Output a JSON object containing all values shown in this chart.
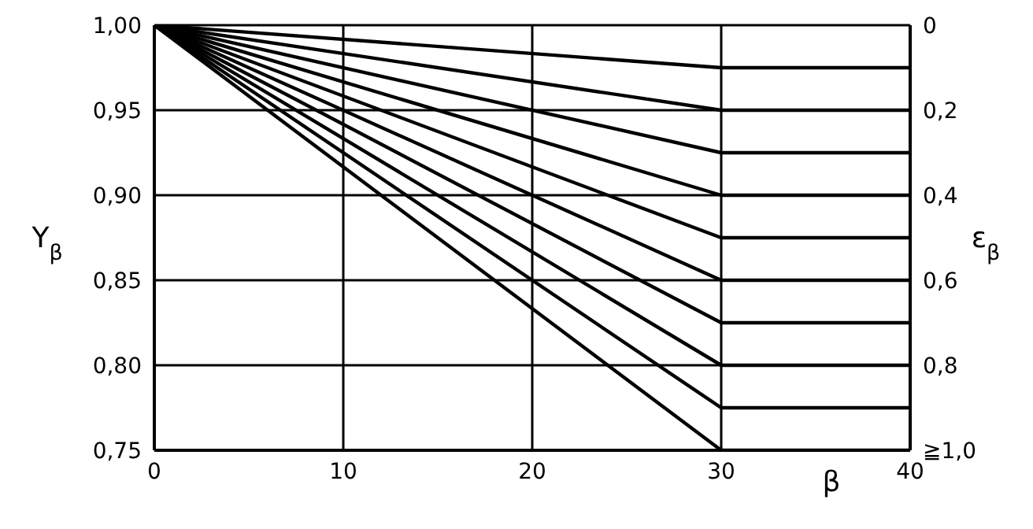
{
  "chart_data": {
    "type": "line",
    "xlabel": "β",
    "ylabel": "Y$_{β}$",
    "y2label": "ε$_{β}$",
    "xlim": [
      0,
      40
    ],
    "xticks": [
      0,
      10,
      20,
      30,
      40
    ],
    "ylim": [
      0.75,
      1.0
    ],
    "yticks": [
      {
        "value": 0.75,
        "label": "0,75"
      },
      {
        "value": 0.8,
        "label": "0,80"
      },
      {
        "value": 0.85,
        "label": "0,85"
      },
      {
        "value": 0.9,
        "label": "0,90"
      },
      {
        "value": 0.95,
        "label": "0,95"
      },
      {
        "value": 1.0,
        "label": "1,00"
      }
    ],
    "y2lim": [
      1.0,
      0
    ],
    "y2ticks": [
      0,
      {
        "value": 0.2,
        "label": "0,2"
      },
      {
        "value": 0.4,
        "label": "0,4"
      },
      {
        "value": 0.6,
        "label": "0,6"
      },
      {
        "value": 0.8,
        "label": "0,8"
      },
      {
        "value": 1.0,
        "label": "≧1,0"
      }
    ],
    "grid": true,
    "marker": "none",
    "line_style": "solid",
    "series": [
      {
        "color": "#000000",
        "x": [
          0,
          30,
          40
        ],
        "values": [
          1.0,
          0.975,
          0.975
        ]
      },
      {
        "color": "#000000",
        "x": [
          0,
          30,
          40
        ],
        "values": [
          1.0,
          0.95,
          0.95
        ]
      },
      {
        "color": "#000000",
        "x": [
          0,
          30,
          40
        ],
        "values": [
          1.0,
          0.925,
          0.925
        ]
      },
      {
        "color": "#000000",
        "x": [
          0,
          30,
          40
        ],
        "values": [
          1.0,
          0.9,
          0.9
        ]
      },
      {
        "color": "#000000",
        "x": [
          0,
          30,
          40
        ],
        "values": [
          1.0,
          0.875,
          0.875
        ]
      },
      {
        "color": "#000000",
        "x": [
          0,
          30,
          40
        ],
        "values": [
          1.0,
          0.85,
          0.85
        ]
      },
      {
        "color": "#000000",
        "x": [
          0,
          30,
          40
        ],
        "values": [
          1.0,
          0.825,
          0.825
        ]
      },
      {
        "color": "#000000",
        "x": [
          0,
          30,
          40
        ],
        "values": [
          1.0,
          0.8,
          0.8
        ]
      },
      {
        "color": "#000000",
        "x": [
          0,
          30,
          40
        ],
        "values": [
          1.0,
          0.775,
          0.775
        ]
      },
      {
        "color": "#000000",
        "x": [
          0,
          30,
          40
        ],
        "values": [
          1.0,
          0.75,
          0.75
        ]
      }
    ]
  }
}
